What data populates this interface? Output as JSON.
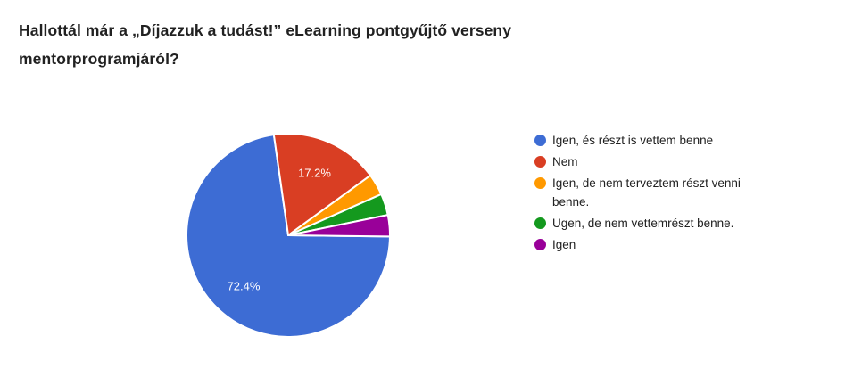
{
  "question": {
    "title": "Hallottál már a „Díjazzuk a tudást!” eLearning pontgyűjtő verseny mentorprogramjáról?"
  },
  "chart_data": {
    "type": "pie",
    "title": "Hallottál már a „Díjazzuk a tudást!” eLearning pontgyűjtő verseny mentorprogramjáról?",
    "categories": [
      "Igen, és részt is vettem benne",
      "Nem",
      "Igen, de nem terveztem részt venni benne.",
      "Ugen, de nem vettemrészt benne.",
      "Igen"
    ],
    "values_percent": [
      72.4,
      17.2,
      3.4,
      3.4,
      3.4
    ],
    "slice_percent_labels": [
      "72.4%",
      "17.2%",
      "",
      "",
      ""
    ],
    "colors": [
      "#3D6CD4",
      "#D93E23",
      "#FF9900",
      "#14991E",
      "#990099"
    ],
    "slice_label_color": "#ffffff",
    "slice_border_color": "#ffffff",
    "legend_position": "right",
    "start_angle_deg": 90.7,
    "grid": false
  }
}
